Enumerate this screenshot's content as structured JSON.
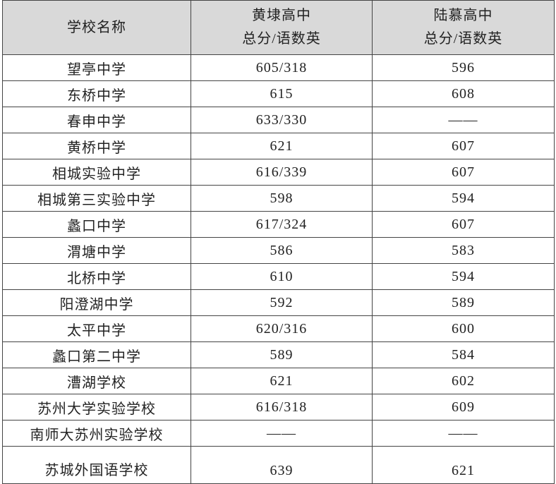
{
  "table": {
    "columns": [
      {
        "title": "学校名称"
      },
      {
        "title": "黄埭高中",
        "subtitle": "总分/语数英"
      },
      {
        "title": "陆慕高中",
        "subtitle": "总分/语数英"
      }
    ],
    "rows": [
      [
        "望亭中学",
        "605/318",
        "596"
      ],
      [
        "东桥中学",
        "615",
        "608"
      ],
      [
        "春申中学",
        "633/330",
        "——"
      ],
      [
        "黄桥中学",
        "621",
        "607"
      ],
      [
        "相城实验中学",
        "616/339",
        "607"
      ],
      [
        "相城第三实验中学",
        "598",
        "594"
      ],
      [
        "蠡口中学",
        "617/324",
        "607"
      ],
      [
        "渭塘中学",
        "586",
        "583"
      ],
      [
        "北桥中学",
        "610",
        "594"
      ],
      [
        "阳澄湖中学",
        "592",
        "589"
      ],
      [
        "太平中学",
        "620/316",
        "600"
      ],
      [
        "蠡口第二中学",
        "589",
        "584"
      ],
      [
        "漕湖学校",
        "621",
        "602"
      ],
      [
        "苏州大学实验学校",
        "616/318",
        "609"
      ],
      [
        "南师大苏州实验学校",
        "——",
        "——"
      ],
      [
        "苏城外国语学校",
        "639",
        "621"
      ]
    ]
  }
}
